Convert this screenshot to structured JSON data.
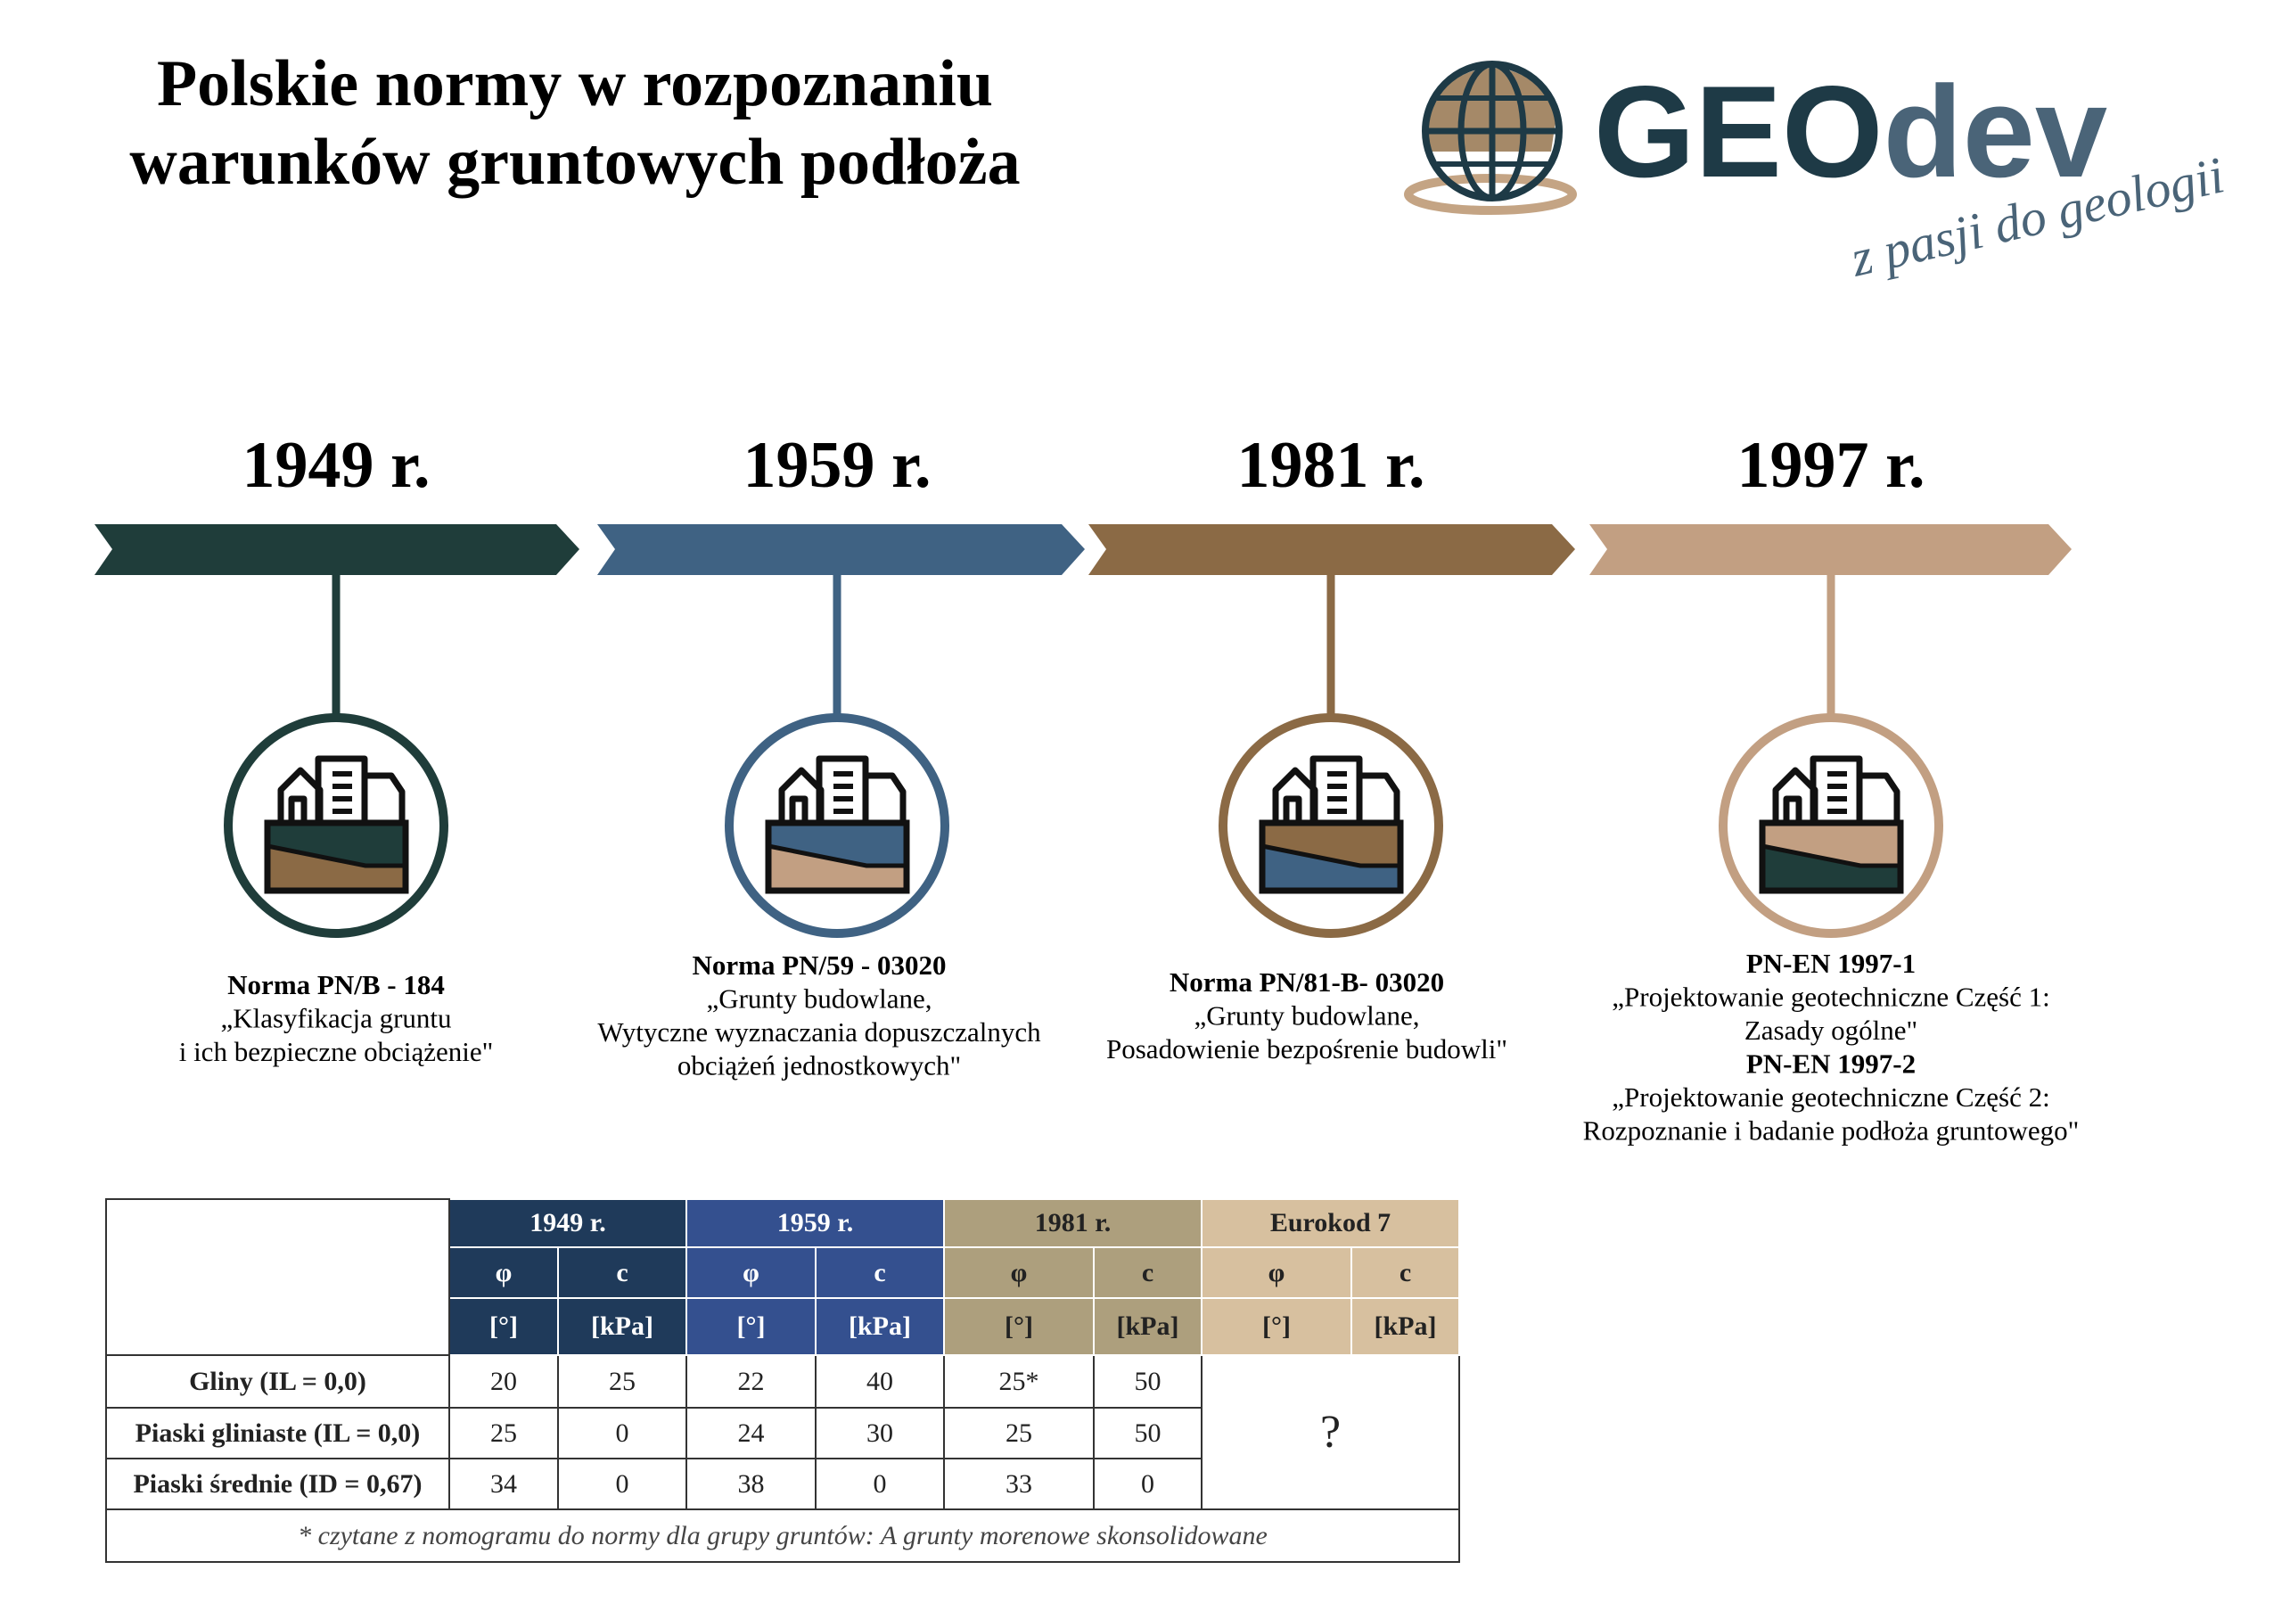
{
  "header": {
    "title": [
      "Polskie normy w rozpoznaniu",
      "warunków gruntowych podłoża"
    ]
  },
  "logo": {
    "brand": [
      "GEO",
      "dev"
    ],
    "tagline": "z pasji do geologii"
  },
  "timeline": [
    {
      "year": "1949 r.",
      "documents": [
        {
          "code": "Norma PN/B - 184",
          "title": [
            "„Klasyfikacja gruntu",
            "i ich bezpieczne obciążenie\""
          ]
        }
      ]
    },
    {
      "year": "1959 r.",
      "documents": [
        {
          "code": "Norma PN/59 - 03020",
          "title": [
            "„Grunty budowlane,",
            "Wytyczne wyznaczania dopuszczalnych",
            "obciążeń jednostkowych\""
          ]
        }
      ]
    },
    {
      "year": "1981 r.",
      "documents": [
        {
          "code": "Norma PN/81-B- 03020",
          "title": [
            "„Grunty budowlane,",
            "Posadowienie bezpośrenie budowli\""
          ]
        }
      ]
    },
    {
      "year": "1997 r.",
      "documents": [
        {
          "code": "PN-EN 1997-1",
          "title": [
            "„Projektowanie geotechniczne Część 1:",
            "Zasady ogólne\""
          ]
        },
        {
          "code": "PN-EN 1997-2",
          "title": [
            "„Projektowanie geotechniczne Część 2:",
            "Rozpoznanie i badanie podłoża gruntowego\""
          ]
        }
      ]
    }
  ],
  "table": {
    "groups": [
      {
        "label": "1949 r.",
        "params": [
          {
            "symbol": "φ",
            "unit": "[°]"
          },
          {
            "symbol": "c",
            "unit": "[kPa]"
          }
        ]
      },
      {
        "label": "1959 r.",
        "params": [
          {
            "symbol": "φ",
            "unit": "[°]"
          },
          {
            "symbol": "c",
            "unit": "[kPa]"
          }
        ]
      },
      {
        "label": "1981 r.",
        "params": [
          {
            "symbol": "φ",
            "unit": "[°]"
          },
          {
            "symbol": "c",
            "unit": "[kPa]"
          }
        ]
      },
      {
        "label": "Eurokod 7",
        "params": [
          {
            "symbol": "φ",
            "unit": "[°]"
          },
          {
            "symbol": "c",
            "unit": "[kPa]"
          }
        ]
      }
    ],
    "rows": [
      {
        "label": "Gliny (IL = 0,0)",
        "values": [
          20,
          25,
          22,
          40,
          "25*",
          50
        ]
      },
      {
        "label": "Piaski gliniaste (IL = 0,0)",
        "values": [
          25,
          0,
          24,
          30,
          25,
          50
        ]
      },
      {
        "label": "Piaski średnie (ID = 0,67)",
        "values": [
          34,
          0,
          38,
          0,
          33,
          0
        ]
      }
    ],
    "unknown": "?",
    "footnote": "* czytane z nomogramu do normy dla grupy gruntów: A grunty morenowe skonsolidowane"
  }
}
